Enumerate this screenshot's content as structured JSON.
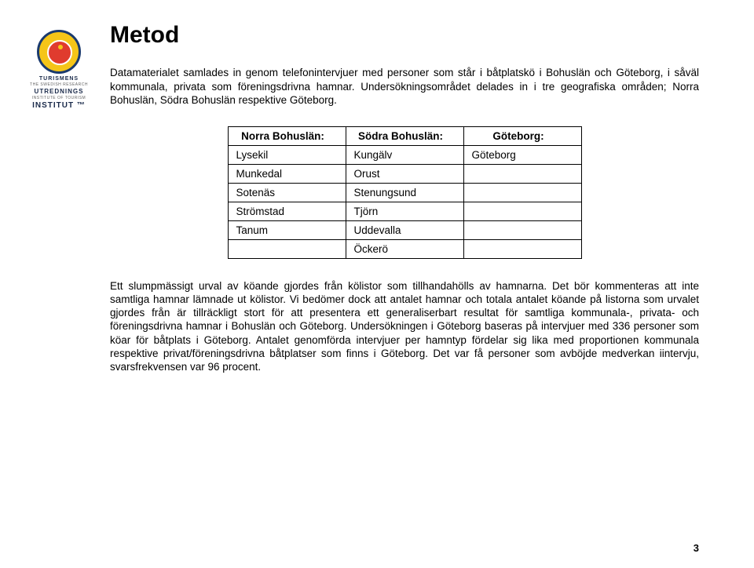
{
  "logo": {
    "line1": "TURISMENS",
    "line2": "THE SWEDISH RESEARCH",
    "line3": "UTREDNINGS",
    "line4": "INSTITUTE OF TOURISM",
    "line5": "INSTITUT ™"
  },
  "title": "Metod",
  "intro": "Datamaterialet samlades in genom telefonintervjuer med personer som står i båtplatskö i Bohuslän och Göteborg, i såväl kommunala, privata som föreningsdrivna hamnar. Undersökningsområdet delades in i tre geografiska områden; Norra Bohuslän, Södra Bohuslän respektive Göteborg.",
  "table": {
    "headers": [
      "Norra Bohuslän:",
      "Södra Bohuslän:",
      "Göteborg:"
    ],
    "rows": [
      [
        "Lysekil",
        "Kungälv",
        "Göteborg"
      ],
      [
        "Munkedal",
        "Orust",
        ""
      ],
      [
        "Sotenäs",
        "Stenungsund",
        ""
      ],
      [
        "Strömstad",
        "Tjörn",
        ""
      ],
      [
        "Tanum",
        "Uddevalla",
        ""
      ],
      [
        "",
        "Öckerö",
        ""
      ]
    ]
  },
  "body": "Ett slumpmässigt urval av köande gjordes från kölistor som tillhandahölls av hamnarna. Det bör kommenteras att inte samtliga hamnar lämnade ut kölistor. Vi bedömer dock att antalet hamnar och totala antalet köande på listorna som urvalet gjordes från är tillräckligt stort för att presentera ett generaliserbart resultat för samtliga kommunala-, privata- och föreningsdrivna hamnar i Bohuslän och Göteborg. Undersökningen i Göteborg baseras på intervjuer med 336 personer som köar för båtplats i Göteborg. Antalet genomförda intervjuer per hamntyp fördelar sig lika med proportionen kommunala respektive privat/föreningsdrivna båtplatser som finns i Göteborg. Det var få personer som avböjde medverkan iintervju, svarsfrekvensen var 96 procent.",
  "pageNumber": "3"
}
